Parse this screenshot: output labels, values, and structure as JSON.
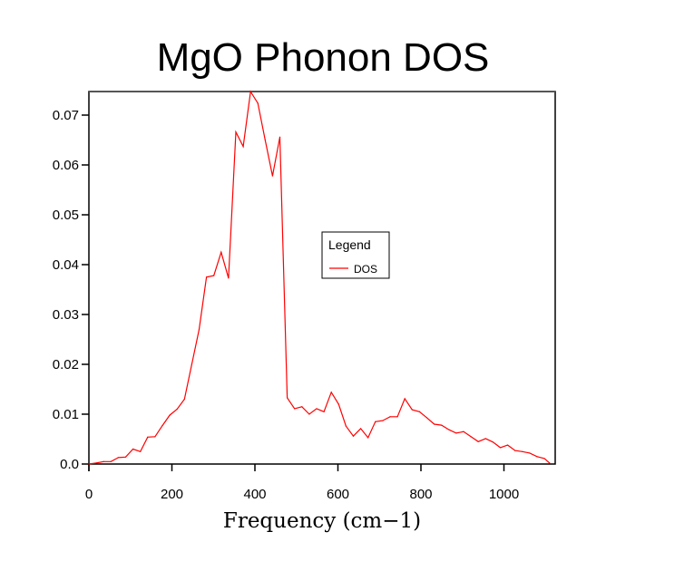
{
  "chart_data": {
    "type": "line",
    "title": "MgO Phonon DOS",
    "xlabel": "Frequency (cm−1)",
    "ylabel": "",
    "xlim": [
      0,
      1125
    ],
    "ylim": [
      0,
      0.0748
    ],
    "xticks": [
      0,
      200,
      400,
      600,
      800,
      1000
    ],
    "xtick_labels": [
      "0",
      "200",
      "400",
      "600",
      "800",
      "1000"
    ],
    "yticks": [
      0.0,
      0.01,
      0.02,
      0.03,
      0.04,
      0.05,
      0.06,
      0.07
    ],
    "ytick_labels": [
      "0.0",
      "0.01",
      "0.02",
      "0.03",
      "0.04",
      "0.05",
      "0.06",
      "0.07"
    ],
    "grid": false,
    "legend": {
      "title": "Legend",
      "placement": "center-right"
    },
    "series": [
      {
        "name": "DOS",
        "color": "#ff0000",
        "x": [
          0,
          17.7,
          35.4,
          53.1,
          70.8,
          88.5,
          106.2,
          123.9,
          141.6,
          159.3,
          177,
          194.7,
          212.4,
          230.1,
          247.8,
          265.5,
          283.2,
          300.9,
          318.6,
          336.3,
          354,
          371.7,
          389.4,
          407.1,
          424.8,
          442.5,
          460.2,
          477.9,
          495.6,
          513.3,
          531,
          548.7,
          566.4,
          584.1,
          601.8,
          619.5,
          637.2,
          654.9,
          672.6,
          690.3,
          708,
          725.7,
          743.4,
          761.1,
          778.8,
          796.5,
          814.2,
          831.9,
          849.6,
          867.3,
          885,
          902.7,
          920.4,
          938.1,
          955.8,
          973.5,
          991.2,
          1008.9,
          1026.6,
          1044.3,
          1062,
          1079.7,
          1097.4,
          1110
        ],
        "y": [
          0.0,
          0.0002,
          0.0005,
          0.0005,
          0.0013,
          0.0014,
          0.003,
          0.0025,
          0.0054,
          0.0055,
          0.0077,
          0.0098,
          0.011,
          0.013,
          0.02,
          0.027,
          0.0375,
          0.0378,
          0.0425,
          0.0373,
          0.0666,
          0.0637,
          0.0747,
          0.0724,
          0.065,
          0.0578,
          0.0656,
          0.0133,
          0.0111,
          0.0115,
          0.01,
          0.0111,
          0.0105,
          0.0144,
          0.012,
          0.0076,
          0.0056,
          0.0071,
          0.0053,
          0.0085,
          0.0087,
          0.0095,
          0.0095,
          0.0131,
          0.0109,
          0.0105,
          0.0093,
          0.008,
          0.0078,
          0.0069,
          0.0062,
          0.0065,
          0.0055,
          0.0045,
          0.0051,
          0.0044,
          0.0033,
          0.0038,
          0.0027,
          0.0025,
          0.0022,
          0.0015,
          0.0011,
          0.0002
        ]
      }
    ]
  }
}
